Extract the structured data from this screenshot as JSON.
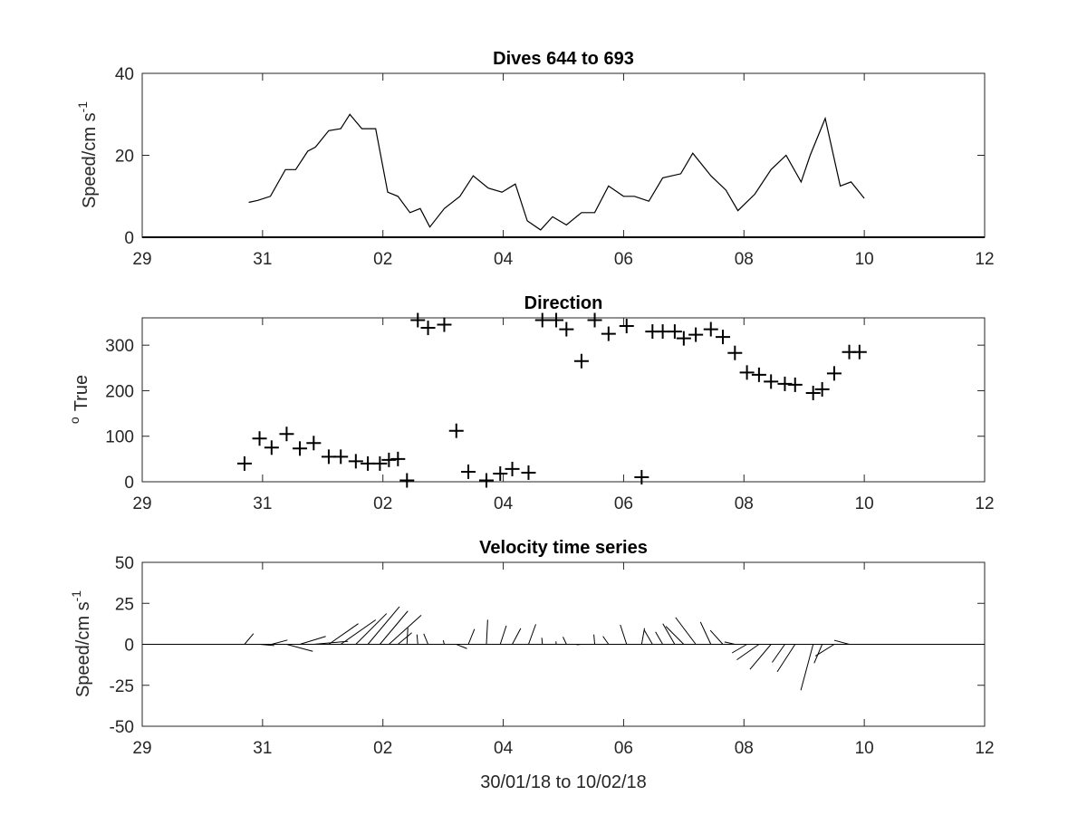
{
  "chart_data": [
    {
      "type": "line",
      "title": "Dives 644 to 693",
      "ylabel": "Speed/cm s",
      "ylabel_sup": "-1",
      "xlim": [
        29,
        43
      ],
      "ylim": [
        0,
        40
      ],
      "xticks": [
        29,
        31,
        33,
        35,
        37,
        39,
        41,
        43
      ],
      "xtick_labels": [
        "29",
        "31",
        "02",
        "04",
        "06",
        "08",
        "10",
        "12"
      ],
      "yticks": [
        0,
        20,
        40
      ],
      "ytick_labels": [
        "0",
        "20",
        "40"
      ],
      "series": [
        {
          "x": [
            30.77,
            30.92,
            31.13,
            31.38,
            31.55,
            31.75,
            31.88,
            32.1,
            32.3,
            32.45,
            32.65,
            32.88,
            33.08,
            33.25,
            33.45,
            33.62,
            33.78,
            34.02,
            34.28,
            34.5,
            34.75,
            34.98,
            35.2,
            35.4,
            35.62,
            35.82,
            36.05,
            36.3,
            36.52,
            36.75,
            37.0,
            37.18,
            37.42,
            37.65,
            37.95,
            38.15,
            38.45,
            38.7,
            38.9,
            39.18,
            39.45,
            39.7,
            39.95,
            40.1,
            40.35,
            40.6,
            40.78,
            41.0
          ],
          "y": [
            8.5,
            9,
            10,
            16.5,
            16.5,
            21,
            22,
            26,
            26.5,
            30,
            26.5,
            26.5,
            11,
            10,
            6,
            7,
            2.5,
            7,
            10,
            15,
            12,
            11,
            13,
            4,
            1.8,
            5,
            3,
            6,
            6,
            12.5,
            10,
            10,
            8.8,
            14.5,
            15.5,
            20.5,
            15,
            11.5,
            6.5,
            10.5,
            16.5,
            20,
            13.5,
            20,
            29,
            12.5,
            13.5,
            9.5
          ]
        }
      ]
    },
    {
      "type": "scatter",
      "title": "Direction",
      "ylabel": "True",
      "ylabel_prefix": "o",
      "xlim": [
        29,
        43
      ],
      "ylim": [
        0,
        360
      ],
      "xticks": [
        29,
        31,
        33,
        35,
        37,
        39,
        41,
        43
      ],
      "xtick_labels": [
        "29",
        "31",
        "02",
        "04",
        "06",
        "08",
        "10",
        "12"
      ],
      "yticks": [
        0,
        100,
        200,
        300
      ],
      "ytick_labels": [
        "0",
        "100",
        "200",
        "300"
      ],
      "series": [
        {
          "marker": "+",
          "x": [
            30.7,
            30.95,
            31.15,
            31.4,
            31.62,
            31.85,
            32.1,
            32.3,
            32.55,
            32.75,
            32.95,
            33.1,
            33.25,
            33.4,
            33.58,
            33.75,
            34.02,
            34.22,
            34.42,
            34.72,
            34.95,
            35.15,
            35.42,
            35.65,
            35.88,
            36.05,
            36.3,
            36.52,
            36.75,
            37.05,
            37.3,
            37.48,
            37.65,
            37.85,
            38.0,
            38.2,
            38.45,
            38.65,
            38.85,
            39.05,
            39.25,
            39.45,
            39.68,
            39.85,
            40.15,
            40.3,
            40.5,
            40.75,
            40.92
          ],
          "y": [
            40,
            95,
            75,
            105,
            73,
            85,
            55,
            55,
            45,
            40,
            40,
            48,
            50,
            3,
            355,
            338,
            345,
            112,
            22,
            3,
            18,
            28,
            20,
            355,
            355,
            335,
            265,
            355,
            325,
            342,
            10,
            330,
            330,
            330,
            315,
            323,
            335,
            318,
            283,
            240,
            235,
            220,
            215,
            213,
            195,
            203,
            238,
            285,
            285
          ]
        }
      ]
    },
    {
      "type": "quiver",
      "title": "Velocity time series",
      "ylabel": "Speed/cm s",
      "ylabel_sup": "-1",
      "xlabel": "30/01/18 to 10/02/18",
      "xlim": [
        29,
        43
      ],
      "ylim": [
        -50,
        50
      ],
      "xticks": [
        29,
        31,
        33,
        35,
        37,
        39,
        41,
        43
      ],
      "xtick_labels": [
        "29",
        "31",
        "02",
        "04",
        "06",
        "08",
        "10",
        "12"
      ],
      "yticks": [
        -50,
        -25,
        0,
        25,
        50
      ],
      "ytick_labels": [
        "-50",
        "-25",
        "0",
        "25",
        "50"
      ],
      "vectors_from_dives": true
    }
  ]
}
